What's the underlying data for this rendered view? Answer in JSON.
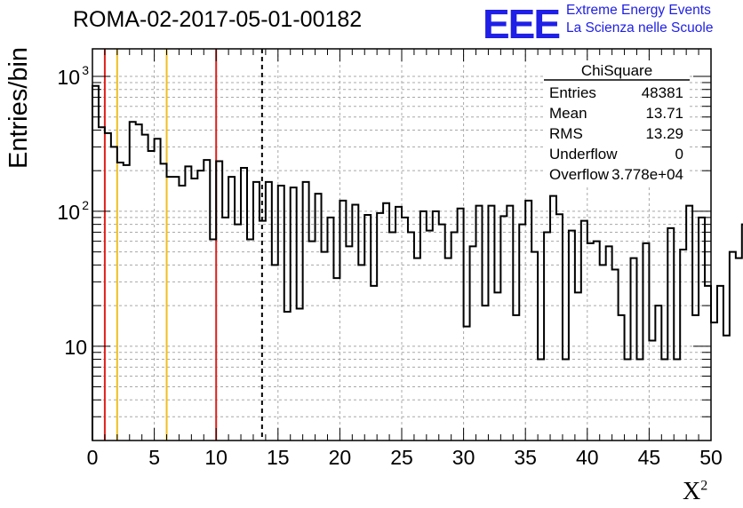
{
  "title": "ROMA-02-2017-05-01-00182",
  "logo": {
    "mark": "EEE",
    "line1": "Extreme Energy Events",
    "line2": "La Scienza nelle Scuole",
    "color": "#1f1fe6"
  },
  "stats": {
    "name": "ChiSquare",
    "rows": [
      {
        "label": "Entries",
        "value": "48381"
      },
      {
        "label": "Mean",
        "value": "13.71"
      },
      {
        "label": "RMS",
        "value": "13.29"
      },
      {
        "label": "Underflow",
        "value": "0"
      },
      {
        "label": "Overflow",
        "value": "3.778e+04"
      }
    ]
  },
  "chart_data": {
    "type": "histogram",
    "title": "ROMA-02-2017-05-01-00182",
    "xlabel": "X",
    "xlabel_superscript": "2",
    "ylabel": "Entries/bin",
    "xlim": [
      0,
      50
    ],
    "ylim": [
      2,
      1600
    ],
    "yscale": "log",
    "grid": true,
    "bin_width": 0.5,
    "x_ticks": [
      0,
      5,
      10,
      15,
      20,
      25,
      30,
      35,
      40,
      45,
      50
    ],
    "y_tick_labels": [
      {
        "value": 10,
        "label": "10"
      },
      {
        "value": 100,
        "label": "10",
        "exp": "2"
      },
      {
        "value": 1000,
        "label": "10",
        "exp": "3"
      }
    ],
    "values": [
      850,
      420,
      380,
      300,
      230,
      220,
      460,
      440,
      370,
      280,
      345,
      225,
      180,
      180,
      155,
      215,
      175,
      200,
      240,
      62,
      235,
      90,
      180,
      80,
      210,
      62,
      165,
      85,
      165,
      40,
      155,
      18,
      150,
      19,
      165,
      60,
      135,
      50,
      90,
      32,
      120,
      55,
      112,
      40,
      94,
      28,
      97,
      115,
      70,
      108,
      90,
      70,
      45,
      100,
      72,
      100,
      80,
      45,
      70,
      105,
      14,
      55,
      110,
      20,
      110,
      25,
      92,
      110,
      17,
      80,
      120,
      50,
      8,
      70,
      130,
      95,
      8,
      72,
      25,
      85,
      58,
      60,
      40,
      55,
      37,
      17,
      8,
      45,
      8,
      58,
      11,
      20,
      8,
      75,
      8,
      52,
      110,
      17,
      90,
      28,
      15,
      28,
      12,
      50,
      45,
      80,
      8,
      9,
      8,
      5,
      80,
      110,
      14,
      30,
      14,
      30,
      10,
      5,
      75
    ],
    "vertical_lines": [
      {
        "x": 1,
        "color": "#e0201d",
        "style": "solid"
      },
      {
        "x": 2,
        "color": "#f0c020",
        "style": "solid"
      },
      {
        "x": 6,
        "color": "#f0c020",
        "style": "solid"
      },
      {
        "x": 10,
        "color": "#e0201d",
        "style": "solid"
      },
      {
        "x": 13.71,
        "color": "#000000",
        "style": "dashed"
      }
    ]
  }
}
